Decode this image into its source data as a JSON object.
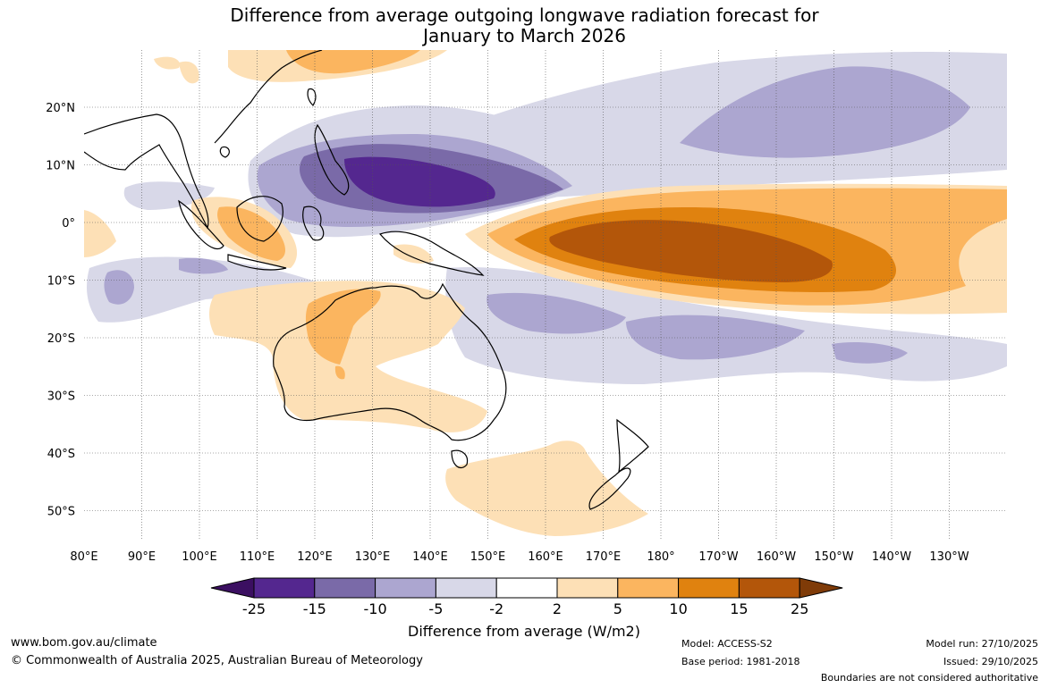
{
  "title": {
    "line1": "Difference from average outgoing longwave radiation forecast for",
    "line2": "January to March 2026"
  },
  "map": {
    "lat_labels": [
      "20°N",
      "10°N",
      "0°",
      "10°S",
      "20°S",
      "30°S",
      "40°S",
      "50°S"
    ],
    "lon_labels": [
      "80°E",
      "90°E",
      "100°E",
      "110°E",
      "120°E",
      "130°E",
      "140°E",
      "150°E",
      "160°E",
      "170°E",
      "180°",
      "170°W",
      "160°W",
      "150°W",
      "140°W",
      "130°W"
    ]
  },
  "colorbar": {
    "ticks": [
      "-25",
      "-15",
      "-10",
      "-5",
      "-2",
      "2",
      "5",
      "10",
      "15",
      "25"
    ],
    "colors": [
      "#3b0f61",
      "#54278f",
      "#7a6aa8",
      "#aca6d0",
      "#d8d8e8",
      "#ffffff",
      "#fde0b6",
      "#fbb55f",
      "#e0820f",
      "#b3560a",
      "#7f3b08"
    ],
    "label": "Difference from average (W/m2)"
  },
  "footer": {
    "url": "www.bom.gov.au/climate",
    "copyright": "© Commonwealth of Australia 2025, Australian Bureau of Meteorology",
    "model": "Model: ACCESS-S2",
    "base_period": "Base period: 1981-2018",
    "model_run": "Model run: 27/10/2025",
    "issued": "Issued: 29/10/2025",
    "disclaimer": "Boundaries are not considered authoritative"
  }
}
